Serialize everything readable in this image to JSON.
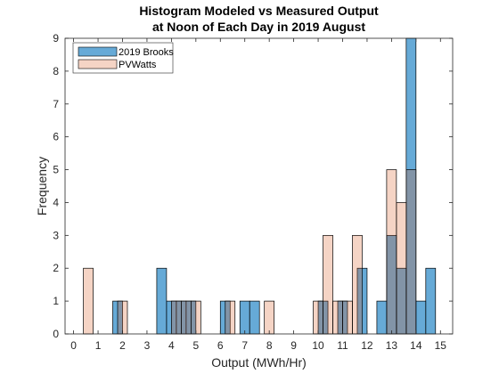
{
  "chart_data": {
    "type": "bar",
    "title": [
      "Histogram Modeled vs Measured Output",
      "at Noon of Each Day in 2019 August"
    ],
    "xlabel": "Output (MWh/Hr)",
    "ylabel": "Frequency",
    "xlim": [
      -0.35,
      15.5
    ],
    "ylim": [
      0,
      9
    ],
    "xticks": [
      "0",
      "1",
      "2",
      "3",
      "4",
      "5",
      "6",
      "7",
      "8",
      "9",
      "10",
      "11",
      "12",
      "13",
      "14",
      "15"
    ],
    "yticks": [
      "0",
      "1",
      "2",
      "3",
      "4",
      "5",
      "6",
      "7",
      "8",
      "9"
    ],
    "bin_width": 0.4,
    "legend_position": "top-left",
    "series": [
      {
        "name": "2019 Brooks",
        "color": "#0072BD",
        "opacity": 0.6,
        "bins": [
          {
            "start": 1.6,
            "count": 1
          },
          {
            "start": 3.4,
            "count": 2
          },
          {
            "start": 3.8,
            "count": 1
          },
          {
            "start": 4.2,
            "count": 1
          },
          {
            "start": 4.6,
            "count": 1
          },
          {
            "start": 6.0,
            "count": 1
          },
          {
            "start": 6.8,
            "count": 1
          },
          {
            "start": 7.2,
            "count": 1
          },
          {
            "start": 10.0,
            "count": 1
          },
          {
            "start": 10.8,
            "count": 1
          },
          {
            "start": 11.6,
            "count": 2
          },
          {
            "start": 12.4,
            "count": 1
          },
          {
            "start": 12.8,
            "count": 3
          },
          {
            "start": 13.2,
            "count": 2
          },
          {
            "start": 13.6,
            "count": 9
          },
          {
            "start": 14.0,
            "count": 1
          },
          {
            "start": 14.4,
            "count": 2
          }
        ]
      },
      {
        "name": "PVWatts",
        "color": "#D95319",
        "opacity": 0.25,
        "bins": [
          {
            "start": 0.4,
            "count": 2
          },
          {
            "start": 1.8,
            "count": 1
          },
          {
            "start": 4.0,
            "count": 1
          },
          {
            "start": 4.4,
            "count": 1
          },
          {
            "start": 4.8,
            "count": 1
          },
          {
            "start": 6.2,
            "count": 1
          },
          {
            "start": 7.8,
            "count": 1
          },
          {
            "start": 9.8,
            "count": 1
          },
          {
            "start": 10.2,
            "count": 3
          },
          {
            "start": 10.6,
            "count": 1
          },
          {
            "start": 11.0,
            "count": 1
          },
          {
            "start": 11.4,
            "count": 3
          },
          {
            "start": 12.8,
            "count": 5
          },
          {
            "start": 13.2,
            "count": 4
          },
          {
            "start": 13.6,
            "count": 5
          }
        ]
      }
    ]
  }
}
